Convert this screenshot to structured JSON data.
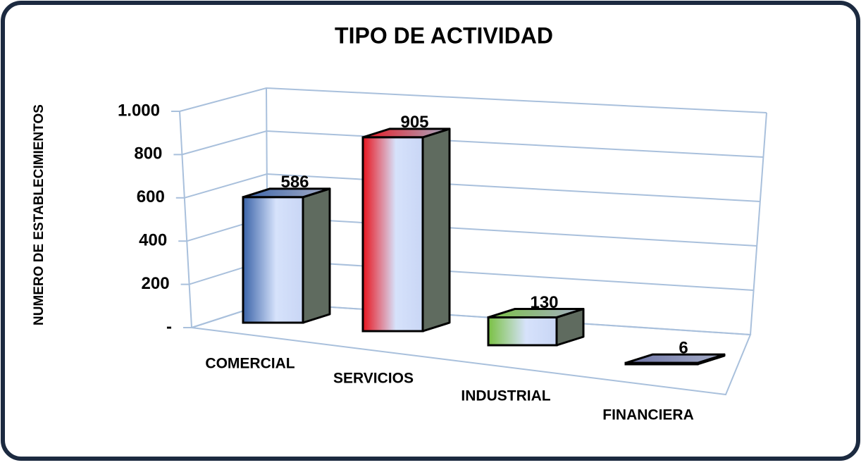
{
  "chart_data": {
    "type": "bar3d",
    "title": "TIPO DE ACTIVIDAD",
    "y_label": "NUMERO DE ESTABLECIMIENTOS",
    "categories": [
      "COMERCIAL",
      "SERVICIOS",
      "INDUSTRIAL",
      "FINANCIERA"
    ],
    "values": [
      586,
      905,
      130,
      6
    ],
    "colors": [
      "#3a63a8",
      "#e8141e",
      "#7ac143",
      "#6e74a6"
    ],
    "ylim": [
      0,
      1000
    ],
    "yticks": [
      {
        "value": 0,
        "label": "-"
      },
      200,
      400,
      600,
      800,
      {
        "value": 1000,
        "label": "1.000"
      }
    ],
    "grid": true
  }
}
